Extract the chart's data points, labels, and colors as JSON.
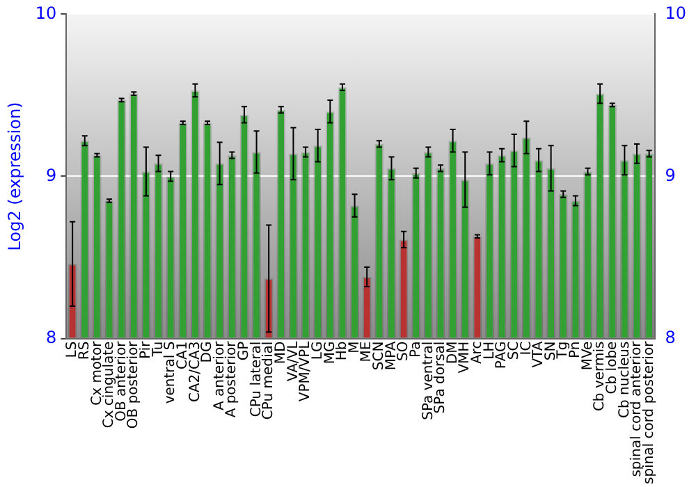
{
  "chart_data": {
    "type": "bar",
    "ylabel": "Log2 (expression)",
    "categories": [
      "LS",
      "RS",
      "Cx motor",
      "Cx cingulate",
      "OB anterior",
      "OB posterior",
      "Pir",
      "Tu",
      "ventral S",
      "CA1",
      "CA2/CA3",
      "DG",
      "A anterior",
      "A posterior",
      "GP",
      "CPu lateral",
      "CPu medial",
      "MD",
      "VA/VL",
      "VPM/VPL",
      "LG",
      "MG",
      "Hb",
      "M",
      "ME",
      "SCN",
      "MPA",
      "SO",
      "Pa",
      "SPa ventral",
      "SPa dorsal",
      "DM",
      "VMH",
      "Arc",
      "LH",
      "PAG",
      "SC",
      "IC",
      "VTA",
      "SN",
      "Tg",
      "Pn",
      "MVe",
      "Cb vermis",
      "Cb lobe",
      "Cb nucleus",
      "spinal cord anterior",
      "spinal cord posterior"
    ],
    "values": [
      8.46,
      9.22,
      9.13,
      8.85,
      9.47,
      9.51,
      9.03,
      9.08,
      9.0,
      9.33,
      9.53,
      9.33,
      9.08,
      9.13,
      9.38,
      9.15,
      8.37,
      9.41,
      9.14,
      9.15,
      9.19,
      9.4,
      9.55,
      8.82,
      8.38,
      9.2,
      9.05,
      8.61,
      9.02,
      9.15,
      9.05,
      9.22,
      8.98,
      8.63,
      9.08,
      9.13,
      9.16,
      9.24,
      9.1,
      9.05,
      8.89,
      8.85,
      9.03,
      9.51,
      9.44,
      9.1,
      9.14,
      9.14
    ],
    "errors": [
      0.26,
      0.03,
      0.01,
      0.01,
      0.01,
      0.01,
      0.15,
      0.05,
      0.03,
      0.01,
      0.04,
      0.01,
      0.13,
      0.02,
      0.05,
      0.13,
      0.33,
      0.02,
      0.16,
      0.03,
      0.1,
      0.07,
      0.02,
      0.07,
      0.06,
      0.02,
      0.07,
      0.05,
      0.03,
      0.03,
      0.02,
      0.07,
      0.17,
      0.01,
      0.07,
      0.04,
      0.1,
      0.1,
      0.07,
      0.14,
      0.02,
      0.03,
      0.02,
      0.06,
      0.01,
      0.09,
      0.06,
      0.02
    ],
    "colors": [
      "#b83232",
      "#33a033",
      "#33a033",
      "#33a033",
      "#33a033",
      "#33a033",
      "#33a033",
      "#33a033",
      "#33a033",
      "#33a033",
      "#33a033",
      "#33a033",
      "#33a033",
      "#33a033",
      "#33a033",
      "#33a033",
      "#b83232",
      "#33a033",
      "#33a033",
      "#33a033",
      "#33a033",
      "#33a033",
      "#33a033",
      "#33a033",
      "#b83232",
      "#33a033",
      "#33a033",
      "#b83232",
      "#33a033",
      "#33a033",
      "#33a033",
      "#33a033",
      "#33a033",
      "#b83232",
      "#33a033",
      "#33a033",
      "#33a033",
      "#33a033",
      "#33a033",
      "#33a033",
      "#33a033",
      "#33a033",
      "#33a033",
      "#33a033",
      "#33a033",
      "#33a033",
      "#33a033",
      "#33a033"
    ],
    "ylim": [
      8,
      10
    ],
    "yticks": [
      8,
      9,
      10
    ],
    "y2lim": [
      8,
      10
    ],
    "y2ticks": [
      8,
      9,
      10
    ],
    "grid": "y",
    "legend": false
  }
}
